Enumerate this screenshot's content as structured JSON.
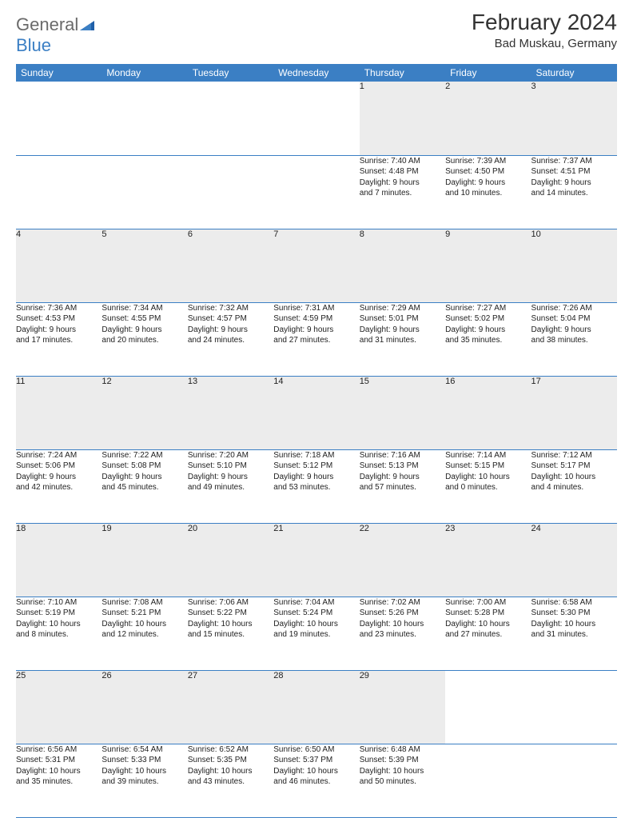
{
  "brand": {
    "part1": "General",
    "part2": "Blue"
  },
  "title": "February 2024",
  "location": "Bad Muskau, Germany",
  "colors": {
    "header_bg": "#3b7fc4",
    "header_text": "#ffffff",
    "daynum_bg": "#ececec",
    "text": "#222222",
    "border": "#3b7fc4",
    "logo_gray": "#6a6a6a",
    "logo_blue": "#3b7fc4",
    "background": "#ffffff"
  },
  "day_headers": [
    "Sunday",
    "Monday",
    "Tuesday",
    "Wednesday",
    "Thursday",
    "Friday",
    "Saturday"
  ],
  "weeks": [
    [
      null,
      null,
      null,
      null,
      {
        "n": "1",
        "sr": "Sunrise: 7:40 AM",
        "ss": "Sunset: 4:48 PM",
        "d1": "Daylight: 9 hours",
        "d2": "and 7 minutes."
      },
      {
        "n": "2",
        "sr": "Sunrise: 7:39 AM",
        "ss": "Sunset: 4:50 PM",
        "d1": "Daylight: 9 hours",
        "d2": "and 10 minutes."
      },
      {
        "n": "3",
        "sr": "Sunrise: 7:37 AM",
        "ss": "Sunset: 4:51 PM",
        "d1": "Daylight: 9 hours",
        "d2": "and 14 minutes."
      }
    ],
    [
      {
        "n": "4",
        "sr": "Sunrise: 7:36 AM",
        "ss": "Sunset: 4:53 PM",
        "d1": "Daylight: 9 hours",
        "d2": "and 17 minutes."
      },
      {
        "n": "5",
        "sr": "Sunrise: 7:34 AM",
        "ss": "Sunset: 4:55 PM",
        "d1": "Daylight: 9 hours",
        "d2": "and 20 minutes."
      },
      {
        "n": "6",
        "sr": "Sunrise: 7:32 AM",
        "ss": "Sunset: 4:57 PM",
        "d1": "Daylight: 9 hours",
        "d2": "and 24 minutes."
      },
      {
        "n": "7",
        "sr": "Sunrise: 7:31 AM",
        "ss": "Sunset: 4:59 PM",
        "d1": "Daylight: 9 hours",
        "d2": "and 27 minutes."
      },
      {
        "n": "8",
        "sr": "Sunrise: 7:29 AM",
        "ss": "Sunset: 5:01 PM",
        "d1": "Daylight: 9 hours",
        "d2": "and 31 minutes."
      },
      {
        "n": "9",
        "sr": "Sunrise: 7:27 AM",
        "ss": "Sunset: 5:02 PM",
        "d1": "Daylight: 9 hours",
        "d2": "and 35 minutes."
      },
      {
        "n": "10",
        "sr": "Sunrise: 7:26 AM",
        "ss": "Sunset: 5:04 PM",
        "d1": "Daylight: 9 hours",
        "d2": "and 38 minutes."
      }
    ],
    [
      {
        "n": "11",
        "sr": "Sunrise: 7:24 AM",
        "ss": "Sunset: 5:06 PM",
        "d1": "Daylight: 9 hours",
        "d2": "and 42 minutes."
      },
      {
        "n": "12",
        "sr": "Sunrise: 7:22 AM",
        "ss": "Sunset: 5:08 PM",
        "d1": "Daylight: 9 hours",
        "d2": "and 45 minutes."
      },
      {
        "n": "13",
        "sr": "Sunrise: 7:20 AM",
        "ss": "Sunset: 5:10 PM",
        "d1": "Daylight: 9 hours",
        "d2": "and 49 minutes."
      },
      {
        "n": "14",
        "sr": "Sunrise: 7:18 AM",
        "ss": "Sunset: 5:12 PM",
        "d1": "Daylight: 9 hours",
        "d2": "and 53 minutes."
      },
      {
        "n": "15",
        "sr": "Sunrise: 7:16 AM",
        "ss": "Sunset: 5:13 PM",
        "d1": "Daylight: 9 hours",
        "d2": "and 57 minutes."
      },
      {
        "n": "16",
        "sr": "Sunrise: 7:14 AM",
        "ss": "Sunset: 5:15 PM",
        "d1": "Daylight: 10 hours",
        "d2": "and 0 minutes."
      },
      {
        "n": "17",
        "sr": "Sunrise: 7:12 AM",
        "ss": "Sunset: 5:17 PM",
        "d1": "Daylight: 10 hours",
        "d2": "and 4 minutes."
      }
    ],
    [
      {
        "n": "18",
        "sr": "Sunrise: 7:10 AM",
        "ss": "Sunset: 5:19 PM",
        "d1": "Daylight: 10 hours",
        "d2": "and 8 minutes."
      },
      {
        "n": "19",
        "sr": "Sunrise: 7:08 AM",
        "ss": "Sunset: 5:21 PM",
        "d1": "Daylight: 10 hours",
        "d2": "and 12 minutes."
      },
      {
        "n": "20",
        "sr": "Sunrise: 7:06 AM",
        "ss": "Sunset: 5:22 PM",
        "d1": "Daylight: 10 hours",
        "d2": "and 15 minutes."
      },
      {
        "n": "21",
        "sr": "Sunrise: 7:04 AM",
        "ss": "Sunset: 5:24 PM",
        "d1": "Daylight: 10 hours",
        "d2": "and 19 minutes."
      },
      {
        "n": "22",
        "sr": "Sunrise: 7:02 AM",
        "ss": "Sunset: 5:26 PM",
        "d1": "Daylight: 10 hours",
        "d2": "and 23 minutes."
      },
      {
        "n": "23",
        "sr": "Sunrise: 7:00 AM",
        "ss": "Sunset: 5:28 PM",
        "d1": "Daylight: 10 hours",
        "d2": "and 27 minutes."
      },
      {
        "n": "24",
        "sr": "Sunrise: 6:58 AM",
        "ss": "Sunset: 5:30 PM",
        "d1": "Daylight: 10 hours",
        "d2": "and 31 minutes."
      }
    ],
    [
      {
        "n": "25",
        "sr": "Sunrise: 6:56 AM",
        "ss": "Sunset: 5:31 PM",
        "d1": "Daylight: 10 hours",
        "d2": "and 35 minutes."
      },
      {
        "n": "26",
        "sr": "Sunrise: 6:54 AM",
        "ss": "Sunset: 5:33 PM",
        "d1": "Daylight: 10 hours",
        "d2": "and 39 minutes."
      },
      {
        "n": "27",
        "sr": "Sunrise: 6:52 AM",
        "ss": "Sunset: 5:35 PM",
        "d1": "Daylight: 10 hours",
        "d2": "and 43 minutes."
      },
      {
        "n": "28",
        "sr": "Sunrise: 6:50 AM",
        "ss": "Sunset: 5:37 PM",
        "d1": "Daylight: 10 hours",
        "d2": "and 46 minutes."
      },
      {
        "n": "29",
        "sr": "Sunrise: 6:48 AM",
        "ss": "Sunset: 5:39 PM",
        "d1": "Daylight: 10 hours",
        "d2": "and 50 minutes."
      },
      null,
      null
    ]
  ]
}
